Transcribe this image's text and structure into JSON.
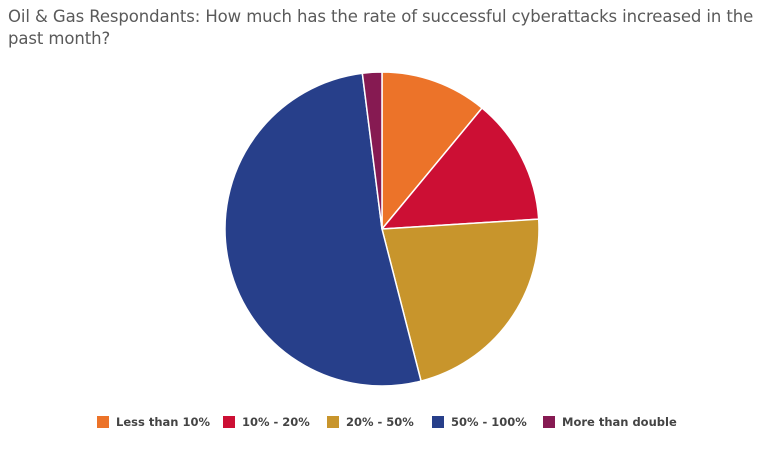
{
  "title": "Oil & Gas Respondants: How much has the rate of successful cyberattacks increased in the past month?",
  "chart_data": {
    "type": "pie",
    "title": "Oil & Gas Respondants: How much has the rate of successful cyberattacks increased in the past month?",
    "start_angle_deg": 0,
    "direction": "clockwise",
    "legend_position": "bottom",
    "slices": [
      {
        "label": "Less than 10%",
        "value": 11,
        "color": "#ec7329"
      },
      {
        "label": "10% - 20%",
        "value": 13,
        "color": "#cc0f34"
      },
      {
        "label": "20% - 50%",
        "value": 22,
        "color": "#c8952c"
      },
      {
        "label": "50% - 100%",
        "value": 52,
        "color": "#273f8a"
      },
      {
        "label": "More than double",
        "value": 2,
        "color": "#861a52"
      }
    ]
  }
}
